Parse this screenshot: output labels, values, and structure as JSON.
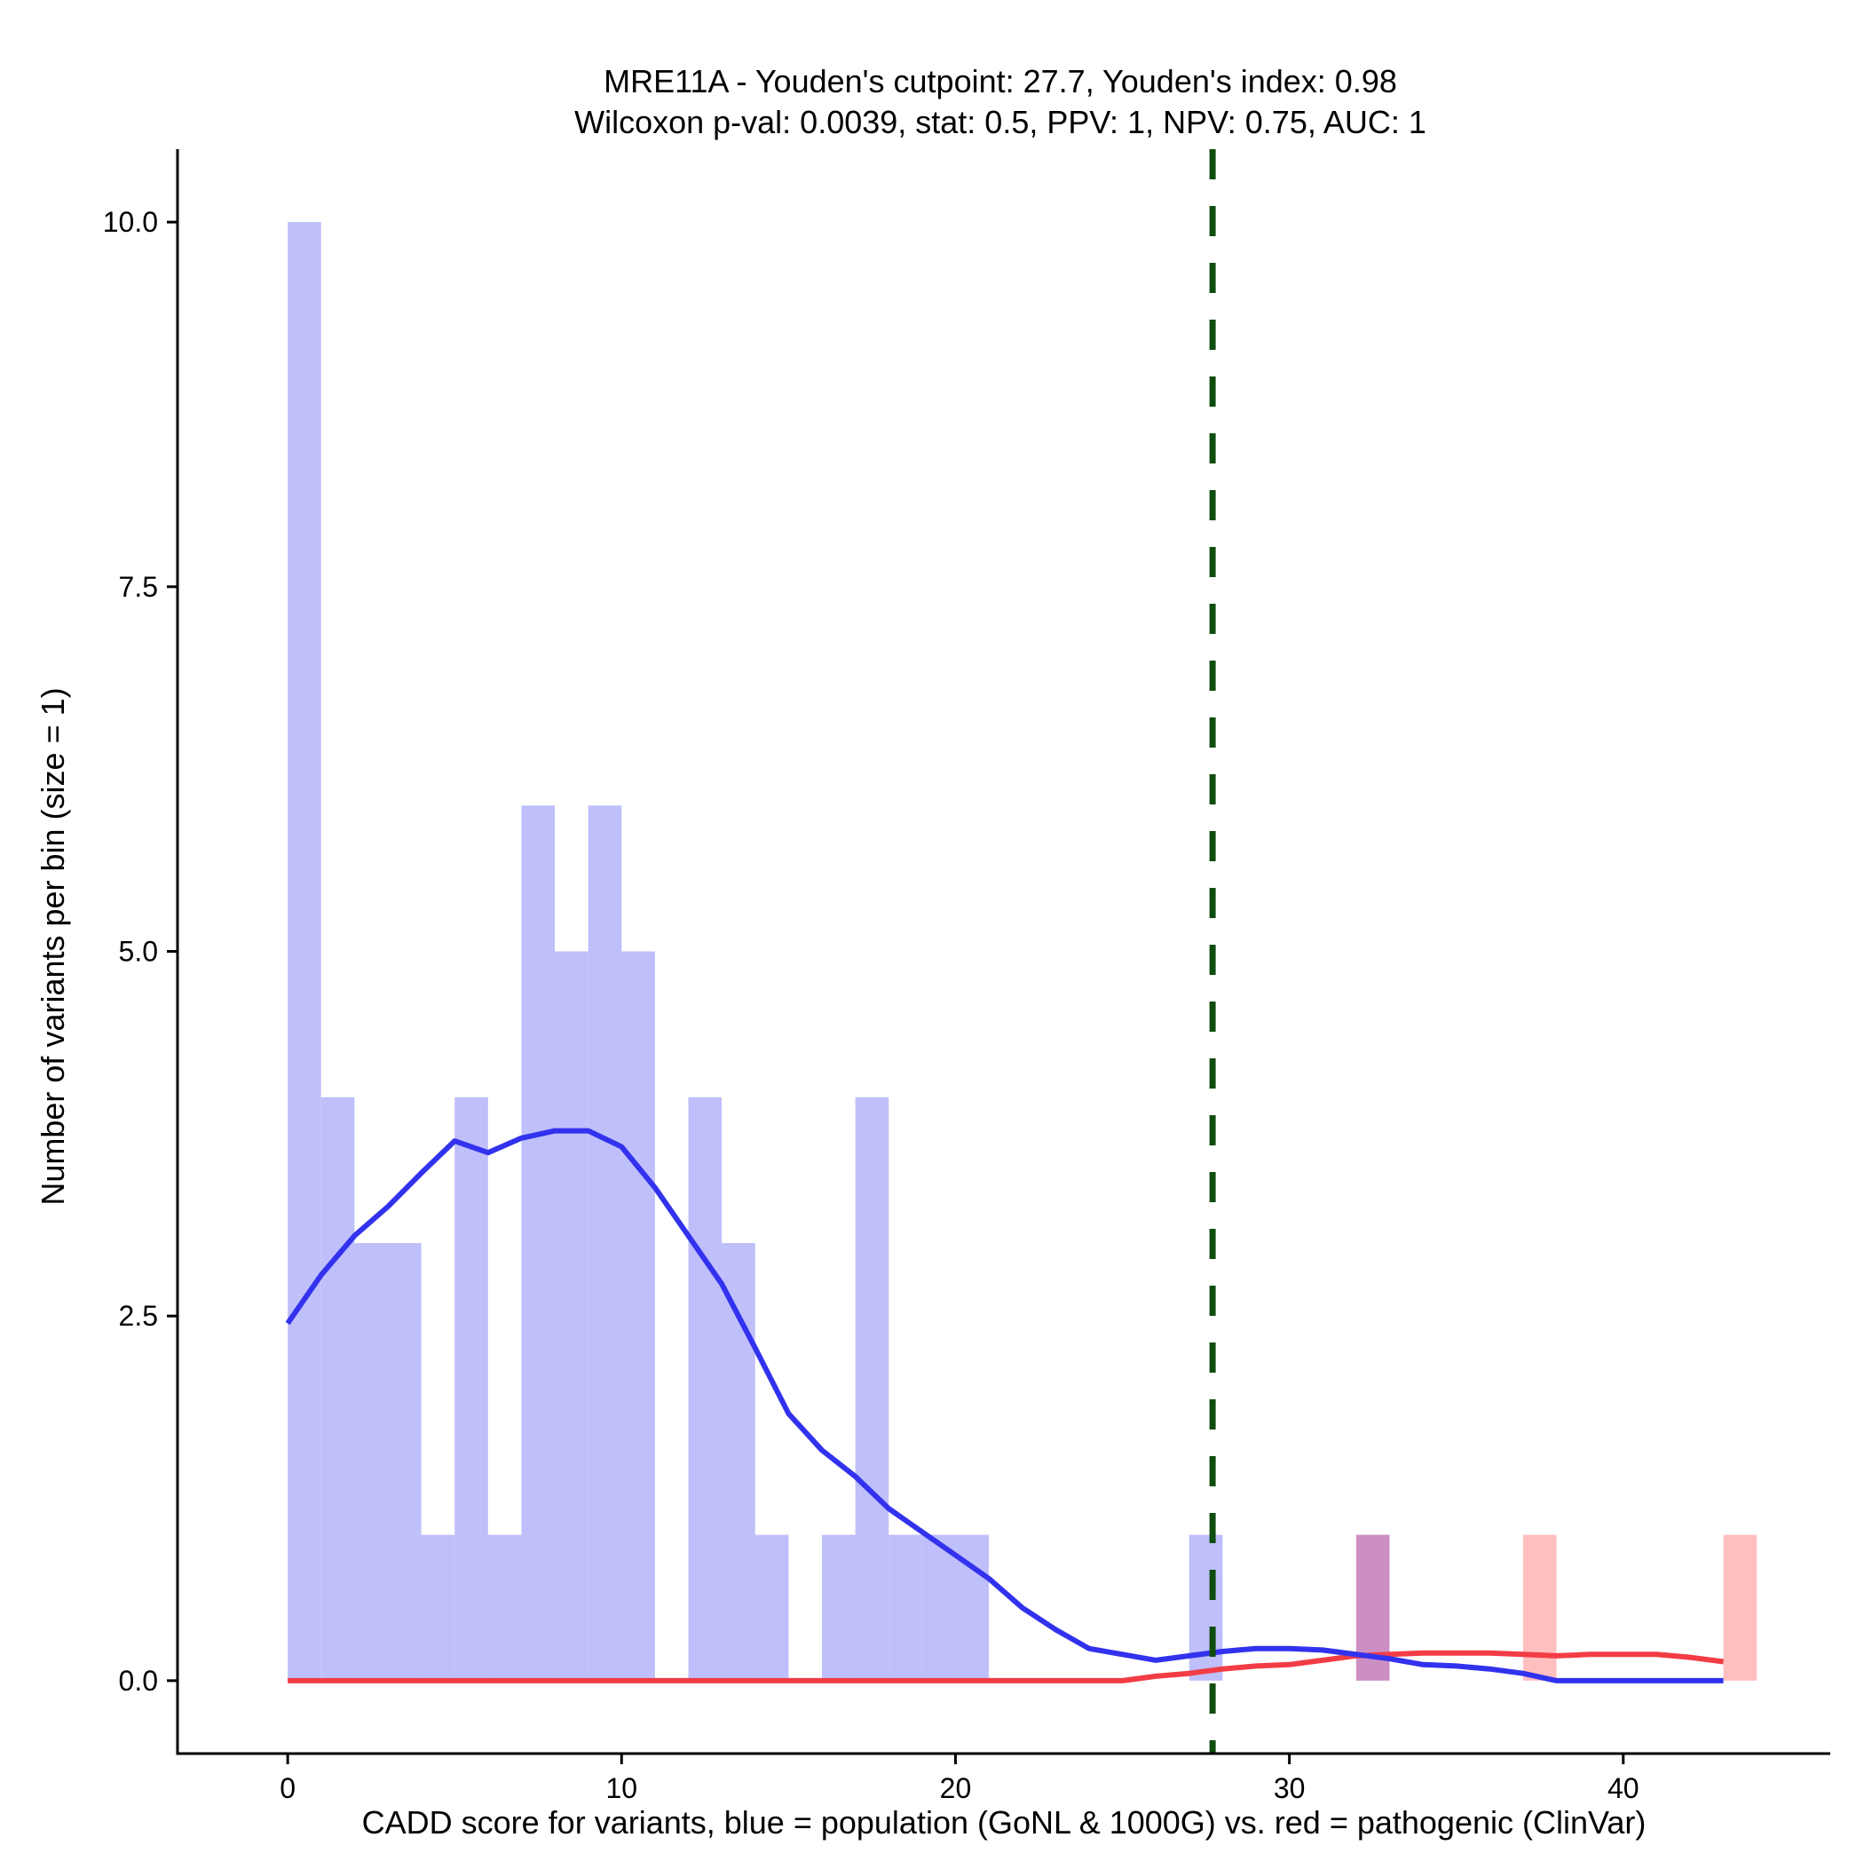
{
  "chart_data": {
    "type": "bar",
    "title": [
      "MRE11A - Youden's cutpoint: 27.7, Youden's index: 0.98",
      "Wilcoxon p-val: 0.0039, stat: 0.5, PPV: 1, NPV: 0.75, AUC: 1"
    ],
    "xlabel": "CADD score for variants, blue = population (GoNL & 1000G) vs. red = pathogenic (ClinVar)",
    "ylabel": "Number of variants per bin (size = 1)",
    "xlim": [
      -3.3,
      46.2
    ],
    "ylim": [
      -0.5,
      10.5
    ],
    "x_ticks": [
      0,
      10,
      20,
      30,
      40
    ],
    "x_tick_labels": [
      "0",
      "10",
      "20",
      "30",
      "40"
    ],
    "y_ticks": [
      0,
      2.5,
      5,
      7.5,
      10
    ],
    "y_tick_labels": [
      "0.0",
      "2.5",
      "5.0",
      "7.5",
      "10.0"
    ],
    "bin_size": 1,
    "cutpoint": 27.7,
    "grid": false,
    "legend": "none",
    "colors": {
      "population_bar": "#bfbffb",
      "pathogenic_bar": "#ffbfbf",
      "overlap_bar": "#cc8fc4",
      "population_line": "#3232ee",
      "pathogenic_line": "#f23c46",
      "cutpoint_line": "#0f4d0f"
    },
    "series": [
      {
        "bins": [
          {
            "x": 0,
            "count": 10
          },
          {
            "x": 1,
            "count": 4
          },
          {
            "x": 2,
            "count": 3
          },
          {
            "x": 3,
            "count": 3
          },
          {
            "x": 4,
            "count": 1
          },
          {
            "x": 5,
            "count": 4
          },
          {
            "x": 6,
            "count": 1
          },
          {
            "x": 7,
            "count": 6
          },
          {
            "x": 8,
            "count": 5
          },
          {
            "x": 9,
            "count": 6
          },
          {
            "x": 10,
            "count": 5
          },
          {
            "x": 12,
            "count": 4
          },
          {
            "x": 13,
            "count": 3
          },
          {
            "x": 14,
            "count": 1
          },
          {
            "x": 16,
            "count": 1
          },
          {
            "x": 17,
            "count": 4
          },
          {
            "x": 18,
            "count": 1
          },
          {
            "x": 19,
            "count": 1
          },
          {
            "x": 20,
            "count": 1
          },
          {
            "x": 27,
            "count": 1
          },
          {
            "x": 32,
            "count": 1
          }
        ],
        "density": [
          [
            0,
            2.45
          ],
          [
            1,
            2.78
          ],
          [
            2,
            3.05
          ],
          [
            3,
            3.25
          ],
          [
            4,
            3.48
          ],
          [
            5,
            3.7
          ],
          [
            6,
            3.62
          ],
          [
            7,
            3.72
          ],
          [
            8,
            3.77
          ],
          [
            9,
            3.77
          ],
          [
            10,
            3.66
          ],
          [
            11,
            3.38
          ],
          [
            12,
            3.05
          ],
          [
            13,
            2.72
          ],
          [
            14,
            2.28
          ],
          [
            15,
            1.83
          ],
          [
            16,
            1.58
          ],
          [
            17,
            1.4
          ],
          [
            18,
            1.18
          ],
          [
            19,
            1.02
          ],
          [
            20,
            0.86
          ],
          [
            21,
            0.7
          ],
          [
            22,
            0.5
          ],
          [
            23,
            0.35
          ],
          [
            24,
            0.22
          ],
          [
            25,
            0.18
          ],
          [
            26,
            0.14
          ],
          [
            27,
            0.17
          ],
          [
            28,
            0.2
          ],
          [
            29,
            0.22
          ],
          [
            30,
            0.22
          ],
          [
            31,
            0.21
          ],
          [
            32,
            0.18
          ],
          [
            33,
            0.15
          ],
          [
            34,
            0.11
          ],
          [
            35,
            0.1
          ],
          [
            36,
            0.08
          ],
          [
            37,
            0.05
          ],
          [
            38,
            0.0
          ],
          [
            39,
            0.0
          ],
          [
            40,
            0.0
          ],
          [
            41,
            0.0
          ],
          [
            42,
            0.0
          ],
          [
            43,
            0.0
          ]
        ]
      },
      {
        "bins": [
          {
            "x": 32,
            "count": 1
          },
          {
            "x": 37,
            "count": 1
          },
          {
            "x": 43,
            "count": 1
          }
        ],
        "density": [
          [
            0,
            0
          ],
          [
            5,
            0
          ],
          [
            10,
            0
          ],
          [
            15,
            0
          ],
          [
            20,
            0
          ],
          [
            25,
            0
          ],
          [
            26,
            0.03
          ],
          [
            27,
            0.05
          ],
          [
            28,
            0.08
          ],
          [
            29,
            0.1
          ],
          [
            30,
            0.11
          ],
          [
            31,
            0.14
          ],
          [
            32,
            0.17
          ],
          [
            33,
            0.18
          ],
          [
            34,
            0.19
          ],
          [
            35,
            0.19
          ],
          [
            36,
            0.19
          ],
          [
            37,
            0.18
          ],
          [
            38,
            0.17
          ],
          [
            39,
            0.18
          ],
          [
            40,
            0.18
          ],
          [
            41,
            0.18
          ],
          [
            42,
            0.16
          ],
          [
            43,
            0.13
          ]
        ]
      }
    ]
  }
}
